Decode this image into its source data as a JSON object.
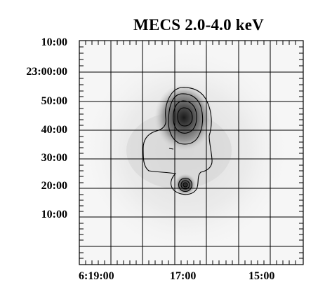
{
  "figure": {
    "title": "MECS 2.0-4.0 keV",
    "y_labels": [
      "10:00",
      "23:00:00",
      "50:00",
      "40:00",
      "30:00",
      "20:00",
      "10:00"
    ],
    "x_labels": [
      "6:19:00",
      "17:00",
      "15:00"
    ],
    "colors": {
      "background": "#ffffff",
      "frame": "#000000",
      "grid": "#000000",
      "contour": "#000000",
      "emission_core": "#1a1a1a",
      "emission_diffuse": "#d8d8d8"
    }
  }
}
